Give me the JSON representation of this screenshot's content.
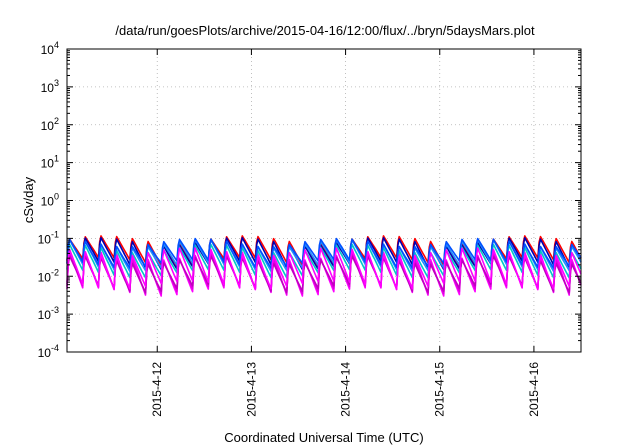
{
  "chart_data": {
    "type": "line",
    "title": "/data/run/goesPlots/archive/2015-04-16/12:00/flux/../bryn/5daysMars.plot",
    "xlabel": "Coordinated Universal Time (UTC)",
    "ylabel": "cSv/day",
    "yscale": "log",
    "ylim": [
      0.0001,
      10000
    ],
    "xlim": [
      "2015-04-11T01:00",
      "2015-04-16T12:00"
    ],
    "grid": true,
    "y_ticks": [
      {
        "base": "10",
        "exp": "4"
      },
      {
        "base": "10",
        "exp": "3"
      },
      {
        "base": "10",
        "exp": "2"
      },
      {
        "base": "10",
        "exp": "1"
      },
      {
        "base": "10",
        "exp": "0"
      },
      {
        "base": "10",
        "exp": "-1"
      },
      {
        "base": "10",
        "exp": "-2"
      },
      {
        "base": "10",
        "exp": "-3"
      },
      {
        "base": "10",
        "exp": "-4"
      }
    ],
    "x_ticks": [
      "2015-4-12",
      "2015-4-13",
      "2015-4-14",
      "2015-4-15",
      "2015-4-16"
    ],
    "series_colors": [
      "#ff0000",
      "#0000b0",
      "#ff00ff",
      "#e000e0",
      "#c000c0",
      "#00c8c8",
      "#1e90ff",
      "#0050ff",
      "#ff00ff"
    ],
    "series": [
      {
        "color": "#ff0000",
        "peak": 0.1,
        "trough": 0.025
      },
      {
        "color": "#0000b0",
        "peak": 0.09,
        "trough": 0.02
      },
      {
        "color": "#ff00ff",
        "peak": 0.04,
        "trough": 0.004
      },
      {
        "color": "#e000e0",
        "peak": 0.035,
        "trough": 0.0045
      },
      {
        "color": "#c000c0",
        "peak": 0.03,
        "trough": 0.005
      },
      {
        "color": "#00c8c8",
        "peak": 0.06,
        "trough": 0.012
      },
      {
        "color": "#1e90ff",
        "peak": 0.08,
        "trough": 0.018
      },
      {
        "color": "#0050ff",
        "peak": 0.085,
        "trough": 0.022
      },
      {
        "color": "#ff00ff",
        "peak": 0.05,
        "trough": 0.006
      }
    ],
    "oscillation_period_hours": 4
  }
}
